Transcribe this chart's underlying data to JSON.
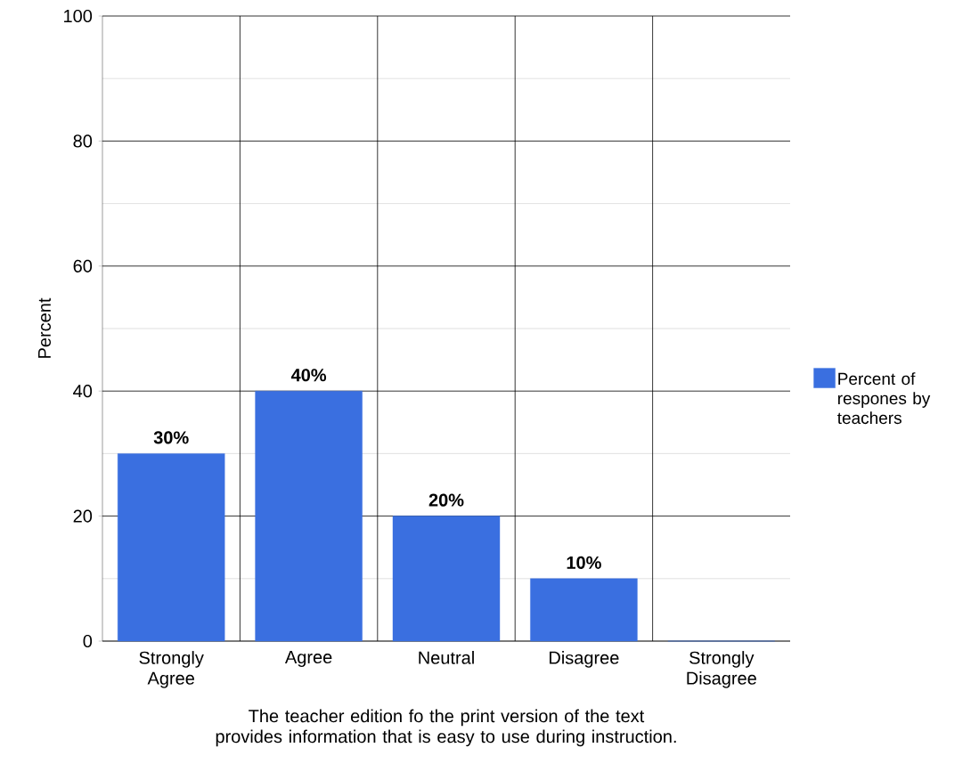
{
  "chart_data": {
    "type": "bar",
    "xlabel": "The teacher edition fo the print version of the text provides information that is easy to use during instruction.",
    "ylabel": "Percent",
    "categories": [
      "Strongly Agree",
      "Agree",
      "Neutral",
      "Disagree",
      "Strongly Disagree"
    ],
    "series": [
      {
        "name": "Percent of respones by teachers",
        "color": "#3a6fe0",
        "values": [
          30,
          40,
          20,
          10,
          0
        ],
        "value_labels": [
          "30%",
          "40%",
          "20%",
          "10%",
          null
        ]
      }
    ],
    "ylim": [
      0,
      100
    ],
    "yticks": [
      0,
      20,
      40,
      60,
      80,
      100
    ],
    "grid": true,
    "legend": "right"
  }
}
